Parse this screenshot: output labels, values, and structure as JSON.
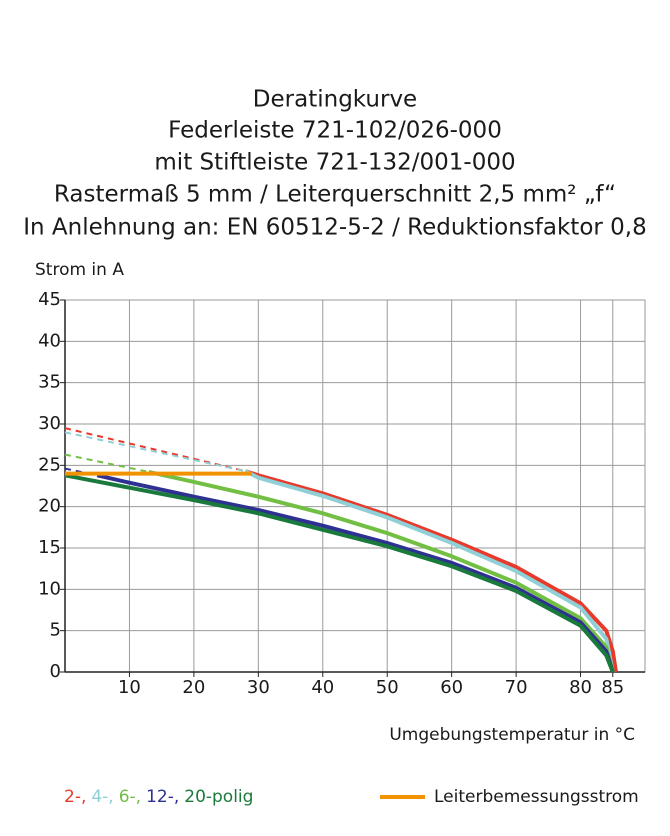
{
  "chart_data": {
    "type": "line",
    "title": [
      "Deratingkurve",
      "Federleiste 721-102/026-000",
      "mit Stiftleiste 721-132/001-000",
      "Rastermaß 5 mm / Leiterquerschnitt 2,5 mm² „f“",
      "In Anlehnung an: EN 60512-5-2 / Reduktionsfaktor 0,8"
    ],
    "y_label": "Strom in A",
    "x_label": "Umgebungstemperatur in °C",
    "xlim": [
      0,
      90
    ],
    "ylim": [
      0,
      45
    ],
    "xticks": [
      10,
      20,
      30,
      40,
      50,
      60,
      70,
      80,
      85
    ],
    "yticks": [
      0,
      5,
      10,
      15,
      20,
      25,
      30,
      35,
      40,
      45
    ],
    "grid": true,
    "series": [
      {
        "name": "2-,",
        "color": "#e8392a",
        "dashed_x": [
          0,
          28
        ],
        "dashed_values": [
          29.5,
          24.3
        ],
        "x": [
          28,
          30,
          40,
          50,
          60,
          70,
          80,
          84,
          85,
          85.5
        ],
        "values": [
          24.3,
          23.8,
          21.6,
          19.0,
          16.0,
          12.7,
          8.3,
          5,
          2.5,
          0
        ]
      },
      {
        "name": "4-,",
        "color": "#8fcfd6",
        "dashed_x": [
          0,
          28
        ],
        "dashed_values": [
          29,
          24.3
        ],
        "x": [
          28,
          30,
          40,
          50,
          60,
          70,
          80,
          84,
          85
        ],
        "values": [
          24.3,
          23.5,
          21.3,
          18.7,
          15.6,
          12.2,
          7.8,
          4,
          0
        ]
      },
      {
        "name": "6-,",
        "color": "#72bf44",
        "dashed_x": [
          0,
          13
        ],
        "dashed_values": [
          26.3,
          24.2
        ],
        "x": [
          13,
          20,
          30,
          40,
          50,
          60,
          70,
          80,
          84,
          85
        ],
        "values": [
          24.2,
          23,
          21.2,
          19.2,
          16.8,
          14,
          10.8,
          6.5,
          3,
          0
        ]
      },
      {
        "name": "12-,",
        "color": "#2e3192",
        "dashed_x": [
          0,
          5
        ],
        "dashed_values": [
          24.6,
          23.8
        ],
        "x": [
          5,
          10,
          20,
          30,
          40,
          50,
          60,
          70,
          80,
          84,
          85
        ],
        "values": [
          23.8,
          22.9,
          21.2,
          19.6,
          17.7,
          15.6,
          13.2,
          10.2,
          6,
          2.5,
          0
        ]
      },
      {
        "name": "20-polig",
        "color": "#1a7a3c",
        "x": [
          0,
          10,
          20,
          30,
          40,
          50,
          60,
          70,
          80,
          84,
          85
        ],
        "values": [
          23.8,
          22.3,
          20.8,
          19.2,
          17.2,
          15.2,
          12.8,
          9.8,
          5.6,
          2,
          0
        ]
      },
      {
        "name": "Leiterbemessungsstrom",
        "color": "#f39200",
        "x": [
          0,
          29
        ],
        "values": [
          24,
          24
        ]
      }
    ]
  }
}
